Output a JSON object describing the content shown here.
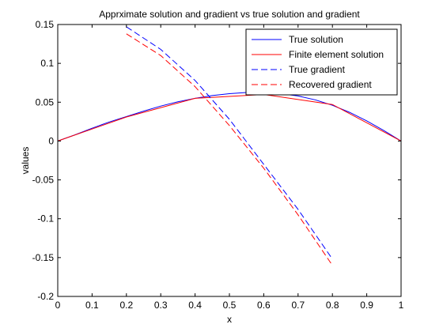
{
  "chart_data": {
    "type": "line",
    "title": "Apprximate solution and gradient vs true solution and gradient",
    "xlabel": "x",
    "ylabel": "values",
    "xlim": [
      0,
      1
    ],
    "ylim": [
      -0.2,
      0.15
    ],
    "xticks": [
      "0",
      "0.1",
      "0.2",
      "0.3",
      "0.4",
      "0.5",
      "0.6",
      "0.7",
      "0.8",
      "0.9",
      "1"
    ],
    "yticks": [
      "-0.2",
      "-0.15",
      "-0.1",
      "-0.05",
      "0",
      "0.05",
      "0.1",
      "0.15"
    ],
    "grid": false,
    "legend_position": "top-right",
    "series": [
      {
        "name": "True solution",
        "color": "#0000ff",
        "style": "solid",
        "x": [
          0,
          0.05,
          0.1,
          0.15,
          0.2,
          0.25,
          0.3,
          0.35,
          0.4,
          0.45,
          0.5,
          0.55,
          0.6,
          0.65,
          0.7,
          0.75,
          0.8,
          0.85,
          0.9,
          0.95,
          1
        ],
        "y": [
          0,
          0.008,
          0.0165,
          0.0245,
          0.0315,
          0.0385,
          0.045,
          0.0505,
          0.055,
          0.0585,
          0.061,
          0.0625,
          0.0625,
          0.061,
          0.058,
          0.053,
          0.046,
          0.037,
          0.026,
          0.0135,
          0
        ]
      },
      {
        "name": "Finite element solution",
        "color": "#ff0000",
        "style": "solid",
        "x": [
          0,
          0.2,
          0.4,
          0.6,
          0.8,
          1
        ],
        "y": [
          0,
          0.031,
          0.055,
          0.06,
          0.047,
          0
        ]
      },
      {
        "name": "True gradient",
        "color": "#0000ff",
        "style": "dashed",
        "x": [
          0.2,
          0.3,
          0.4,
          0.5,
          0.6,
          0.7,
          0.8
        ],
        "y": [
          0.147,
          0.118,
          0.078,
          0.028,
          -0.03,
          -0.088,
          -0.152
        ]
      },
      {
        "name": "Recovered gradient",
        "color": "#ff0000",
        "style": "dashed",
        "x": [
          0.2,
          0.3,
          0.4,
          0.5,
          0.6,
          0.7,
          0.8
        ],
        "y": [
          0.138,
          0.11,
          0.07,
          0.02,
          -0.035,
          -0.095,
          -0.16
        ]
      }
    ]
  }
}
